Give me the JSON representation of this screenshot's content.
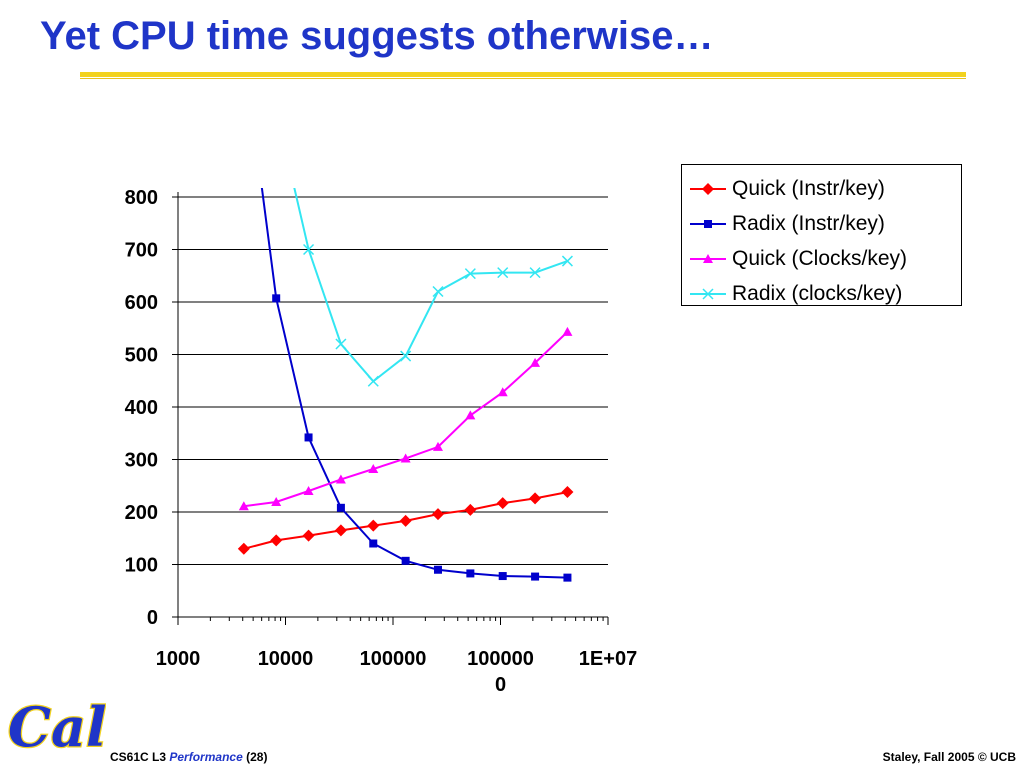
{
  "slide": {
    "title": "Yet CPU time suggests otherwise…",
    "footer_course": "CS61C L3",
    "footer_topic": "Performance",
    "footer_page": "(28)",
    "footer_right": "Staley, Fall 2005 © UCB",
    "logo_text": "Cal",
    "accent_color": "#1f35c8",
    "rule_color": "#f2d21e"
  },
  "chart_data": {
    "type": "line",
    "title": "",
    "xlabel": "",
    "ylabel": "",
    "x_scale": "log",
    "xlim": [
      1000,
      10000000
    ],
    "ylim": [
      0,
      800
    ],
    "y_ticks": [
      0,
      100,
      200,
      300,
      400,
      500,
      600,
      700,
      800
    ],
    "x_ticks": [
      1000,
      10000,
      100000,
      1000000,
      10000000
    ],
    "x_tick_labels": [
      "1000",
      "10000",
      "100000",
      "1000000",
      "1E+07"
    ],
    "grid": "horizontal",
    "legend_position": "right",
    "series": [
      {
        "name": "Quick (Instr/key)",
        "color": "#ff0000",
        "marker": "diamond",
        "x": [
          4096,
          8192,
          16384,
          32768,
          65536,
          131072,
          262144,
          524288,
          1048576,
          2097152,
          4194304
        ],
        "y": [
          130,
          146,
          155,
          165,
          174,
          183,
          196,
          204,
          217,
          226,
          238
        ]
      },
      {
        "name": "Radix (Instr/key)",
        "color": "#0000cc",
        "marker": "square",
        "x": [
          6000,
          8192,
          16384,
          32768,
          65536,
          131072,
          262144,
          524288,
          1048576,
          2097152,
          4194304
        ],
        "y": [
          820,
          607,
          342,
          208,
          140,
          107,
          90,
          83,
          78,
          77,
          75
        ],
        "marker_from_index": 1
      },
      {
        "name": "Quick (Clocks/key)",
        "color": "#ff00ff",
        "marker": "triangle",
        "x": [
          4096,
          8192,
          16384,
          32768,
          65536,
          131072,
          262144,
          524288,
          1048576,
          2097152,
          4194304
        ],
        "y": [
          211,
          219,
          240,
          262,
          282,
          302,
          324,
          384,
          428,
          484,
          543
        ]
      },
      {
        "name": "Radix (clocks/key)",
        "color": "#33e6f2",
        "marker": "x",
        "x": [
          12000,
          16384,
          32768,
          65536,
          131072,
          262144,
          524288,
          1048576,
          2097152,
          4194304
        ],
        "y": [
          820,
          700,
          520,
          449,
          497,
          620,
          654,
          656,
          656,
          678
        ],
        "marker_from_index": 1
      }
    ]
  }
}
